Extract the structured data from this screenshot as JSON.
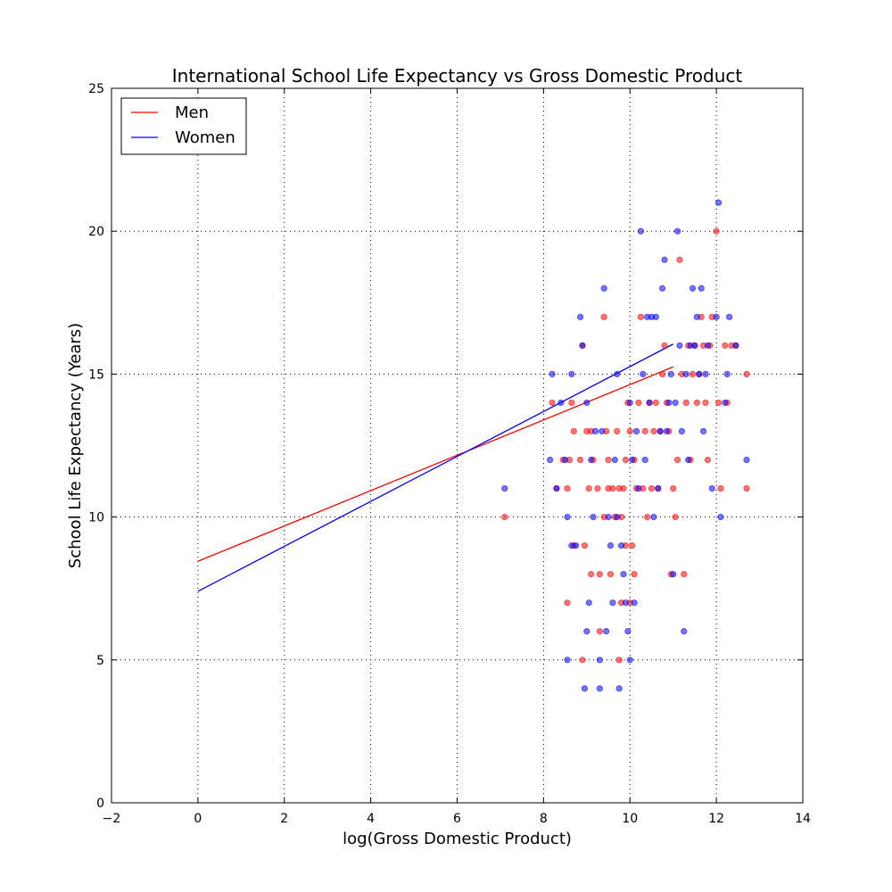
{
  "chart_data": {
    "type": "scatter",
    "title": "International School Life Expectancy vs Gross Domestic Product",
    "xlabel": "log(Gross Domestic Product)",
    "ylabel": "School Life Expectancy (Years)",
    "xlim": [
      -2,
      14
    ],
    "ylim": [
      0,
      25
    ],
    "x_ticks": [
      -2,
      0,
      2,
      4,
      6,
      8,
      10,
      12,
      14
    ],
    "y_ticks": [
      0,
      5,
      10,
      15,
      20,
      25
    ],
    "x_tick_labels": [
      "−2",
      "0",
      "2",
      "4",
      "6",
      "8",
      "10",
      "12",
      "14"
    ],
    "y_tick_labels": [
      "0",
      "5",
      "10",
      "15",
      "20",
      "25"
    ],
    "grid": true,
    "legend": {
      "position": "top-left",
      "entries": [
        {
          "label": "Men",
          "color": "#ff0000"
        },
        {
          "label": "Women",
          "color": "#0000ff"
        }
      ]
    },
    "series": [
      {
        "name": "Men",
        "color": "#ff0000",
        "fit_line": {
          "x": [
            0,
            11
          ],
          "y": [
            8.45,
            15.25
          ]
        },
        "points": [
          [
            7.1,
            10
          ],
          [
            8.2,
            14
          ],
          [
            8.3,
            11
          ],
          [
            8.45,
            12
          ],
          [
            8.55,
            7
          ],
          [
            8.55,
            11
          ],
          [
            8.6,
            12
          ],
          [
            8.65,
            14
          ],
          [
            8.7,
            9
          ],
          [
            8.7,
            13
          ],
          [
            8.85,
            12
          ],
          [
            8.9,
            5
          ],
          [
            8.9,
            16
          ],
          [
            8.95,
            9
          ],
          [
            9.0,
            13
          ],
          [
            9.05,
            11
          ],
          [
            9.1,
            8
          ],
          [
            9.1,
            13
          ],
          [
            9.15,
            12
          ],
          [
            9.25,
            11
          ],
          [
            9.3,
            6
          ],
          [
            9.3,
            8
          ],
          [
            9.4,
            10
          ],
          [
            9.4,
            17
          ],
          [
            9.45,
            13
          ],
          [
            9.5,
            11
          ],
          [
            9.5,
            12
          ],
          [
            9.55,
            8
          ],
          [
            9.6,
            11
          ],
          [
            9.65,
            10
          ],
          [
            9.7,
            13
          ],
          [
            9.75,
            11
          ],
          [
            9.75,
            5
          ],
          [
            9.8,
            7
          ],
          [
            9.8,
            10
          ],
          [
            9.85,
            11
          ],
          [
            9.9,
            9
          ],
          [
            9.9,
            12
          ],
          [
            9.95,
            14
          ],
          [
            10.0,
            7
          ],
          [
            10.0,
            13
          ],
          [
            10.05,
            9
          ],
          [
            10.1,
            8
          ],
          [
            10.1,
            12
          ],
          [
            10.15,
            11
          ],
          [
            10.2,
            14
          ],
          [
            10.25,
            17
          ],
          [
            10.3,
            11
          ],
          [
            10.35,
            13
          ],
          [
            10.4,
            10
          ],
          [
            10.45,
            14
          ],
          [
            10.5,
            11
          ],
          [
            10.55,
            13
          ],
          [
            10.6,
            14
          ],
          [
            10.65,
            11
          ],
          [
            10.7,
            13
          ],
          [
            10.75,
            15
          ],
          [
            10.8,
            16
          ],
          [
            10.85,
            14
          ],
          [
            10.9,
            13
          ],
          [
            10.95,
            8
          ],
          [
            11.0,
            11
          ],
          [
            11.05,
            10
          ],
          [
            11.1,
            12
          ],
          [
            11.15,
            19
          ],
          [
            11.2,
            15
          ],
          [
            11.25,
            8
          ],
          [
            11.3,
            14
          ],
          [
            11.35,
            16
          ],
          [
            11.4,
            12
          ],
          [
            11.45,
            15
          ],
          [
            11.5,
            16
          ],
          [
            11.55,
            14
          ],
          [
            11.6,
            15
          ],
          [
            11.65,
            17
          ],
          [
            11.7,
            16
          ],
          [
            11.75,
            14
          ],
          [
            11.8,
            12
          ],
          [
            11.85,
            16
          ],
          [
            11.9,
            17
          ],
          [
            12.0,
            20
          ],
          [
            12.05,
            14
          ],
          [
            12.1,
            11
          ],
          [
            12.2,
            16
          ],
          [
            12.25,
            14
          ],
          [
            12.35,
            16
          ],
          [
            12.45,
            16
          ],
          [
            12.7,
            15
          ],
          [
            12.7,
            11
          ]
        ]
      },
      {
        "name": "Women",
        "color": "#0000ff",
        "fit_line": {
          "x": [
            0,
            11
          ],
          "y": [
            7.4,
            16.05
          ]
        },
        "points": [
          [
            7.1,
            11
          ],
          [
            8.15,
            12
          ],
          [
            8.2,
            15
          ],
          [
            8.3,
            11
          ],
          [
            8.4,
            14
          ],
          [
            8.5,
            12
          ],
          [
            8.55,
            5
          ],
          [
            8.55,
            10
          ],
          [
            8.65,
            15
          ],
          [
            8.65,
            9
          ],
          [
            8.75,
            9
          ],
          [
            8.85,
            17
          ],
          [
            8.9,
            16
          ],
          [
            8.95,
            4
          ],
          [
            9.0,
            14
          ],
          [
            9.0,
            6
          ],
          [
            9.05,
            7
          ],
          [
            9.1,
            12
          ],
          [
            9.15,
            10
          ],
          [
            9.2,
            13
          ],
          [
            9.3,
            4
          ],
          [
            9.3,
            5
          ],
          [
            9.35,
            13
          ],
          [
            9.4,
            18
          ],
          [
            9.45,
            6
          ],
          [
            9.5,
            10
          ],
          [
            9.55,
            9
          ],
          [
            9.6,
            7
          ],
          [
            9.65,
            12
          ],
          [
            9.7,
            15
          ],
          [
            9.7,
            10
          ],
          [
            9.75,
            4
          ],
          [
            9.8,
            9
          ],
          [
            9.85,
            8
          ],
          [
            9.9,
            7
          ],
          [
            9.95,
            6
          ],
          [
            10.0,
            5
          ],
          [
            10.0,
            14
          ],
          [
            10.05,
            12
          ],
          [
            10.1,
            7
          ],
          [
            10.15,
            13
          ],
          [
            10.2,
            11
          ],
          [
            10.25,
            20
          ],
          [
            10.3,
            15
          ],
          [
            10.35,
            12
          ],
          [
            10.4,
            17
          ],
          [
            10.45,
            14
          ],
          [
            10.5,
            17
          ],
          [
            10.55,
            10
          ],
          [
            10.6,
            17
          ],
          [
            10.65,
            11
          ],
          [
            10.7,
            13
          ],
          [
            10.75,
            18
          ],
          [
            10.8,
            19
          ],
          [
            10.85,
            13
          ],
          [
            10.9,
            14
          ],
          [
            10.95,
            15
          ],
          [
            11.0,
            8
          ],
          [
            11.05,
            14
          ],
          [
            11.1,
            20
          ],
          [
            11.15,
            16
          ],
          [
            11.2,
            13
          ],
          [
            11.25,
            6
          ],
          [
            11.3,
            15
          ],
          [
            11.35,
            12
          ],
          [
            11.4,
            16
          ],
          [
            11.45,
            18
          ],
          [
            11.5,
            16
          ],
          [
            11.55,
            17
          ],
          [
            11.6,
            15
          ],
          [
            11.65,
            18
          ],
          [
            11.7,
            13
          ],
          [
            11.75,
            15
          ],
          [
            11.8,
            16
          ],
          [
            11.9,
            11
          ],
          [
            12.0,
            17
          ],
          [
            12.05,
            21
          ],
          [
            12.1,
            10
          ],
          [
            12.2,
            14
          ],
          [
            12.25,
            15
          ],
          [
            12.3,
            17
          ],
          [
            12.45,
            16
          ],
          [
            12.7,
            12
          ]
        ]
      }
    ]
  }
}
